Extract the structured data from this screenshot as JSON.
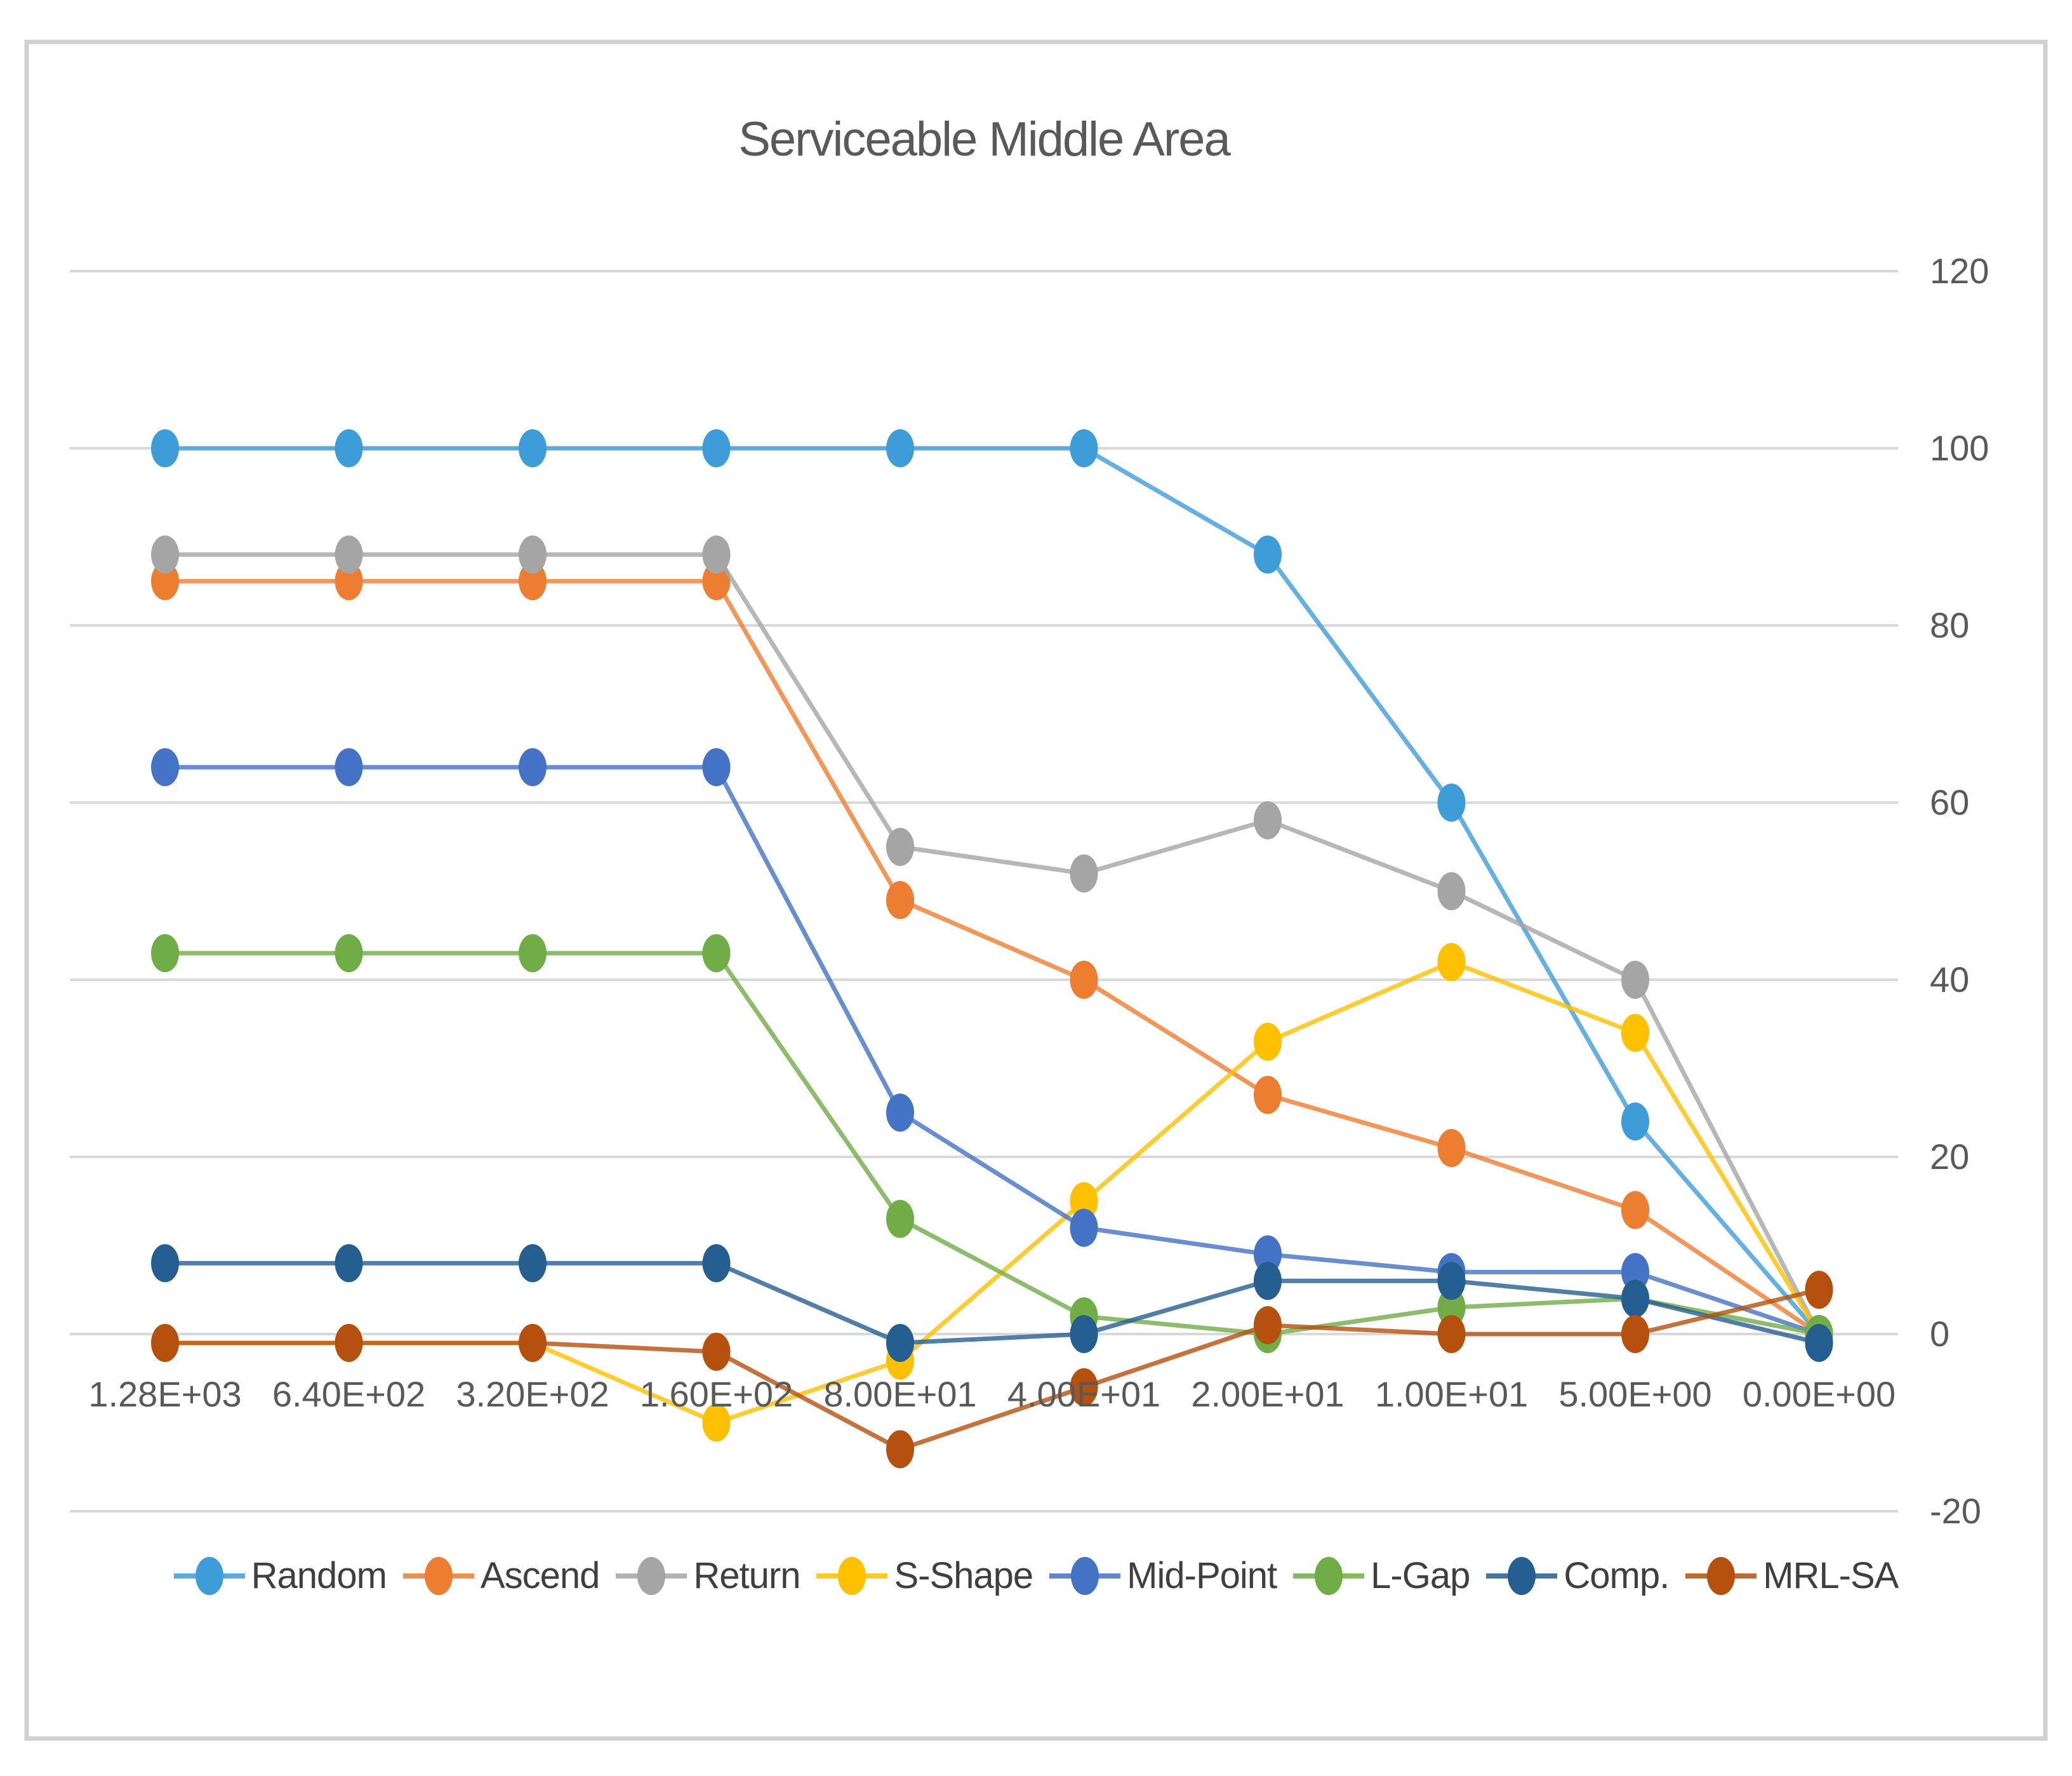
{
  "chart_data": {
    "type": "line",
    "title": "Serviceable Middle Area",
    "categories": [
      "1.28E+03",
      "6.40E+02",
      "3.20E+02",
      "1.60E+02",
      "8.00E+01",
      "4.00E+01",
      "2.00E+01",
      "1.00E+01",
      "5.00E+00",
      "0.00E+00"
    ],
    "series": [
      {
        "name": "Random",
        "color": "#3E9CD9",
        "values": [
          100,
          100,
          100,
          100,
          100,
          100,
          88,
          60,
          24,
          0
        ]
      },
      {
        "name": "Ascend",
        "color": "#ED7D31",
        "values": [
          85,
          85,
          85,
          85,
          49,
          40,
          27,
          21,
          14,
          0
        ]
      },
      {
        "name": "Return",
        "color": "#A5A5A5",
        "values": [
          88,
          88,
          88,
          88,
          55,
          52,
          58,
          50,
          40,
          0
        ]
      },
      {
        "name": "S-Shape",
        "color": "#FFC000",
        "values": [
          -1,
          -1,
          -1,
          -10,
          -3,
          15,
          33,
          42,
          34,
          0
        ]
      },
      {
        "name": "Mid-Point",
        "color": "#4472C4",
        "values": [
          64,
          64,
          64,
          64,
          25,
          12,
          9,
          7,
          7,
          0
        ]
      },
      {
        "name": "L-Gap",
        "color": "#70AD47",
        "values": [
          43,
          43,
          43,
          43,
          13,
          2,
          0,
          3,
          4,
          0
        ]
      },
      {
        "name": "Comp.",
        "color": "#255E91",
        "values": [
          8,
          8,
          8,
          8,
          -1,
          0,
          6,
          6,
          4,
          -1
        ]
      },
      {
        "name": "MRL-SA",
        "color": "#B5500E",
        "values": [
          -1,
          -1,
          -1,
          -2,
          -13,
          -6,
          1,
          0,
          0,
          5
        ]
      }
    ],
    "y_axis": {
      "min": -20,
      "max": 120,
      "step": 20,
      "ticks": [
        120,
        100,
        80,
        60,
        40,
        20,
        0,
        -20
      ],
      "side": "right"
    },
    "x_axis": {
      "label_row": "below-zero-line"
    },
    "grid": true,
    "legend_position": "bottom",
    "colors": {
      "grid": "#D9D9D9",
      "frame": "#D0D0D0",
      "axis_text": "#595959",
      "title_text": "#595959",
      "legend_text": "#3F3F3F",
      "background": "#FFFFFF"
    }
  }
}
